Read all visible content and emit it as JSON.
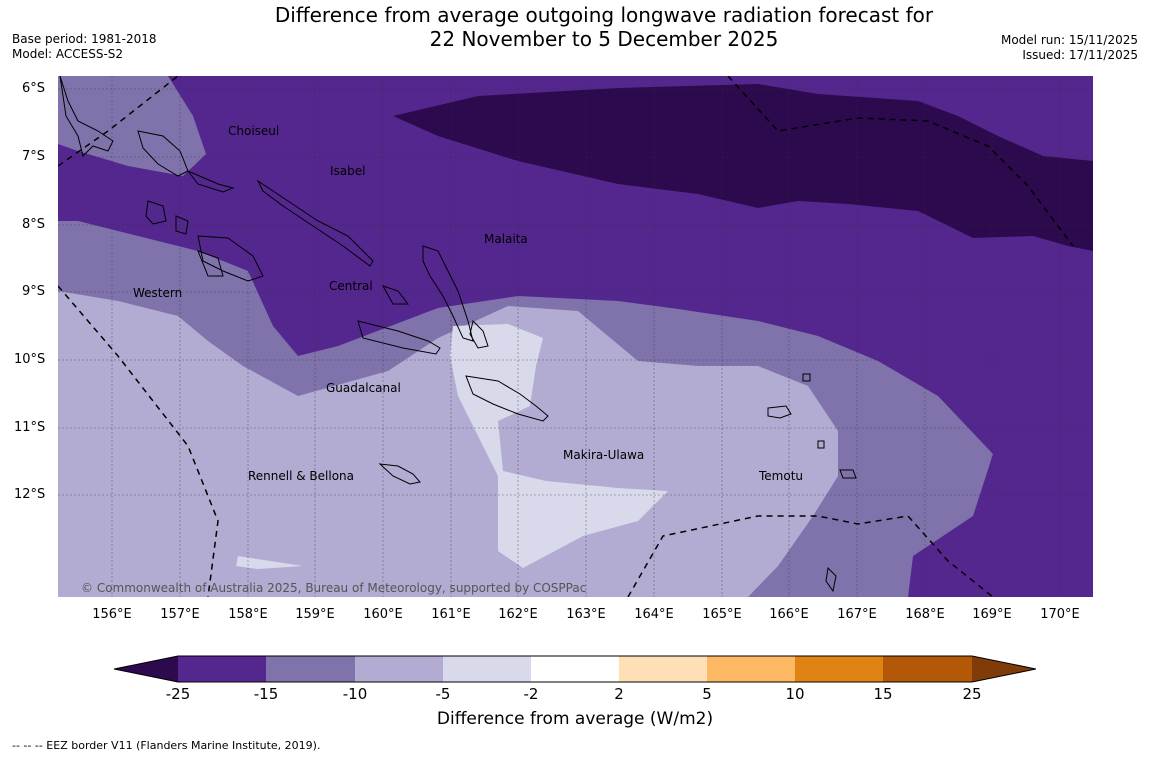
{
  "header": {
    "title_line1": "Difference from average outgoing longwave radiation forecast for",
    "title_line2": "22 November to 5 December 2025",
    "base_period": "Base period: 1981-2018",
    "model": "Model: ACCESS-S2",
    "model_run": "Model run: 15/11/2025",
    "issued": "Issued: 17/11/2025"
  },
  "map": {
    "lat_labels": [
      "6°S",
      "7°S",
      "8°S",
      "9°S",
      "10°S",
      "11°S",
      "12°S"
    ],
    "lon_labels": [
      "156°E",
      "157°E",
      "158°E",
      "159°E",
      "160°E",
      "161°E",
      "162°E",
      "163°E",
      "164°E",
      "165°E",
      "166°E",
      "167°E",
      "168°E",
      "169°E",
      "170°E"
    ],
    "regions": [
      "Choiseul",
      "Isabel",
      "Malaita",
      "Western",
      "Central",
      "Guadalcanal",
      "Rennell & Bellona",
      "Makira-Ulawa",
      "Temotu"
    ],
    "copyright": "© Commonwealth of Australia 2025, Bureau of Meteorology, supported by COSPPac"
  },
  "colorbar": {
    "ticks": [
      "-25",
      "-15",
      "-10",
      "-5",
      "-2",
      "2",
      "5",
      "10",
      "15",
      "25"
    ],
    "colors": [
      "#2d0a4e",
      "#54278f",
      "#8073ac",
      "#b2abd2",
      "#d8daeb",
      "#ffffff",
      "#fee0b6",
      "#fdb863",
      "#e08214",
      "#b35806",
      "#7f3b08"
    ],
    "label": "Difference from average (W/m2)"
  },
  "footnote": "--  --  -- EEZ border V11 (Flanders Marine Institute, 2019)."
}
